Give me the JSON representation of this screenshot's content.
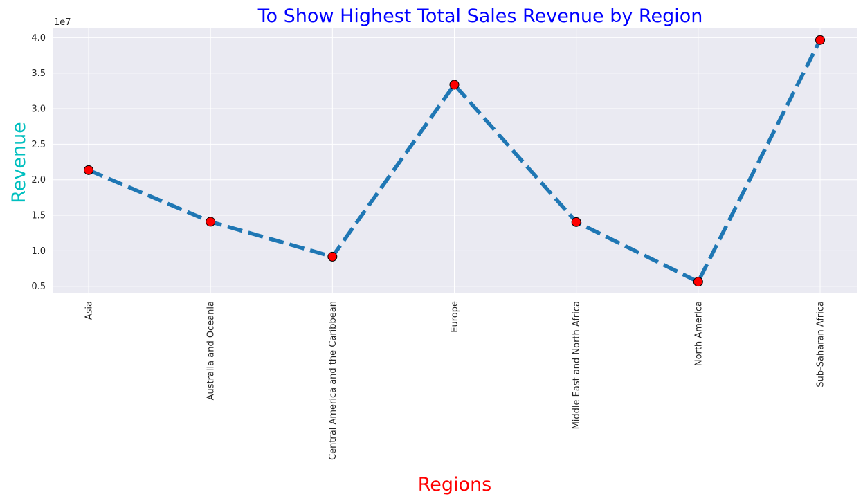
{
  "chart_data": {
    "type": "line",
    "title": "To Show Highest Total Sales Revenue by Region",
    "xlabel": "Regions",
    "ylabel": "Revenue",
    "y_offset_label": "1e7",
    "categories": [
      "Asia",
      "Australia and Oceania",
      "Central America and the Caribbean",
      "Europe",
      "Middle East and North Africa",
      "North America",
      "Sub-Saharan Africa"
    ],
    "series": [
      {
        "values": [
          21350000,
          14090000,
          9170000,
          33370000,
          14050000,
          5640000,
          39670000
        ]
      }
    ],
    "yticks": [
      0.5,
      1.0,
      1.5,
      2.0,
      2.5,
      3.0,
      3.5,
      4.0
    ],
    "ytick_labels": [
      "0.5",
      "1.0",
      "1.5",
      "2.0",
      "2.5",
      "3.0",
      "3.5",
      "4.0"
    ],
    "y_scale": 10000000,
    "ylim": [
      4000000,
      41400000
    ],
    "grid": true,
    "line_style": "dashed",
    "colors": {
      "background": "#eaeaf2",
      "grid": "#ffffff",
      "line": "#1f77b4",
      "marker_fill": "#ff0000",
      "marker_edge": "#000000",
      "title": "#0000ff",
      "xlabel": "#ff0000",
      "ylabel": "#00bfbf"
    }
  }
}
